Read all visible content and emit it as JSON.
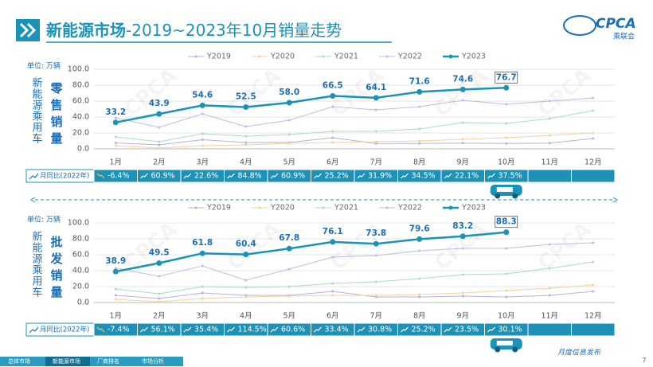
{
  "header": {
    "title_main": "新能源市场",
    "title_rest": "-2019~2023年10月销量走势",
    "logo": "CPCA",
    "logo_sub": "乘联会"
  },
  "footer": {
    "tabs": [
      "总体市场",
      "新能源市场",
      "厂商排名",
      "市场分析"
    ],
    "note": "月度信息发布",
    "page": "7"
  },
  "chart_data": [
    {
      "type": "line",
      "unit": "单位: 万辆",
      "ylabel": "新能源乘用车",
      "metric": "零售销量",
      "categories": [
        "1月",
        "2月",
        "3月",
        "4月",
        "5月",
        "6月",
        "7月",
        "8月",
        "9月",
        "10月",
        "11月",
        "12月"
      ],
      "ylim": [
        0,
        100
      ],
      "yticks": [
        {
          "value": 0,
          "label": "0.0"
        },
        {
          "value": 20,
          "label": "20.0"
        },
        {
          "value": 40,
          "label": "40.0"
        },
        {
          "value": 60,
          "label": "60.0"
        },
        {
          "value": 80,
          "label": "80.0"
        },
        {
          "value": 100,
          "label": "100.0"
        }
      ],
      "grid": true,
      "series": [
        {
          "name": "Y2019",
          "color": "#b4b2d8",
          "values": [
            7.5,
            5,
            11.5,
            8,
            8,
            14,
            6.8,
            6.7,
            7.2,
            6.8,
            7.2,
            13
          ]
        },
        {
          "name": "Y2020",
          "color": "#f3d29c",
          "values": [
            4,
            1,
            4,
            5,
            7,
            8,
            9,
            10,
            12,
            14,
            17,
            20
          ]
        },
        {
          "name": "Y2021",
          "color": "#a8dcc6",
          "values": [
            15,
            9,
            19,
            16,
            18,
            22,
            22,
            25,
            33,
            32,
            38,
            48
          ]
        },
        {
          "name": "Y2022",
          "color": "#b9bfe2",
          "values": [
            39,
            27,
            44,
            28,
            36,
            53,
            49,
            53,
            61,
            56,
            60,
            64
          ]
        },
        {
          "name": "Y2023",
          "color": "#1a93b8",
          "values": [
            33.2,
            43.9,
            54.6,
            52.5,
            58.0,
            66.5,
            64.1,
            71.6,
            74.6,
            76.7,
            null,
            null
          ],
          "value_labels": [
            "33.2",
            "43.9",
            "54.6",
            "52.5",
            "58.0",
            "66.5",
            "64.1",
            "71.6",
            "74.6",
            "76.7",
            null,
            null
          ]
        }
      ],
      "yoy": {
        "label": "月同比(2022年)",
        "values": [
          -6.4,
          60.9,
          22.6,
          84.8,
          60.9,
          25.2,
          31.9,
          34.5,
          22.1,
          37.5,
          null,
          null
        ],
        "value_labels": [
          "-6.4%",
          "60.9%",
          "22.6%",
          "84.8%",
          "60.9%",
          "25.2%",
          "31.9%",
          "34.5%",
          "22.1%",
          "37.5%",
          null,
          null
        ]
      }
    },
    {
      "type": "line",
      "unit": "单位: 万辆",
      "ylabel": "新能源乘用车",
      "metric": "批发销量",
      "categories": [
        "1月",
        "2月",
        "3月",
        "4月",
        "5月",
        "6月",
        "7月",
        "8月",
        "9月",
        "10月",
        "11月",
        "12月"
      ],
      "ylim": [
        0,
        100
      ],
      "yticks": [
        {
          "value": 0,
          "label": "0.0"
        },
        {
          "value": 20,
          "label": "20.0"
        },
        {
          "value": 40,
          "label": "40.0"
        },
        {
          "value": 60,
          "label": "60.0"
        },
        {
          "value": 80,
          "label": "80.0"
        },
        {
          "value": 100,
          "label": "100.0"
        }
      ],
      "grid": true,
      "series": [
        {
          "name": "Y2019",
          "color": "#b4b2d8",
          "values": [
            9,
            5,
            12,
            9,
            9,
            14,
            7,
            7,
            8,
            7,
            9,
            14
          ]
        },
        {
          "name": "Y2020",
          "color": "#f3d29c",
          "values": [
            4,
            1,
            5,
            7,
            8,
            9,
            9,
            10,
            12,
            15,
            18,
            22
          ]
        },
        {
          "name": "Y2021",
          "color": "#a8dcc6",
          "values": [
            17,
            11,
            20,
            19,
            20,
            24,
            26,
            30,
            35,
            36,
            43,
            51
          ]
        },
        {
          "name": "Y2022",
          "color": "#b9bfe2",
          "values": [
            43,
            33,
            46,
            28,
            42,
            57,
            59,
            65,
            68,
            68,
            73,
            75
          ]
        },
        {
          "name": "Y2023",
          "color": "#1a93b8",
          "values": [
            38.9,
            49.5,
            61.8,
            60.4,
            67.8,
            76.1,
            73.8,
            79.6,
            83.2,
            88.3,
            null,
            null
          ],
          "value_labels": [
            "38.9",
            "49.5",
            "61.8",
            "60.4",
            "67.8",
            "76.1",
            "73.8",
            "79.6",
            "83.2",
            "88.3",
            null,
            null
          ]
        }
      ],
      "yoy": {
        "label": "月同比(2022年)",
        "values": [
          -7.4,
          56.1,
          35.4,
          114.5,
          60.6,
          33.4,
          30.8,
          25.2,
          23.5,
          30.1,
          null,
          null
        ],
        "value_labels": [
          "-7.4%",
          "56.1%",
          "35.4%",
          "114.5%",
          "60.6%",
          "33.4%",
          "30.8%",
          "25.2%",
          "23.5%",
          "30.1%",
          null,
          null
        ]
      }
    }
  ]
}
